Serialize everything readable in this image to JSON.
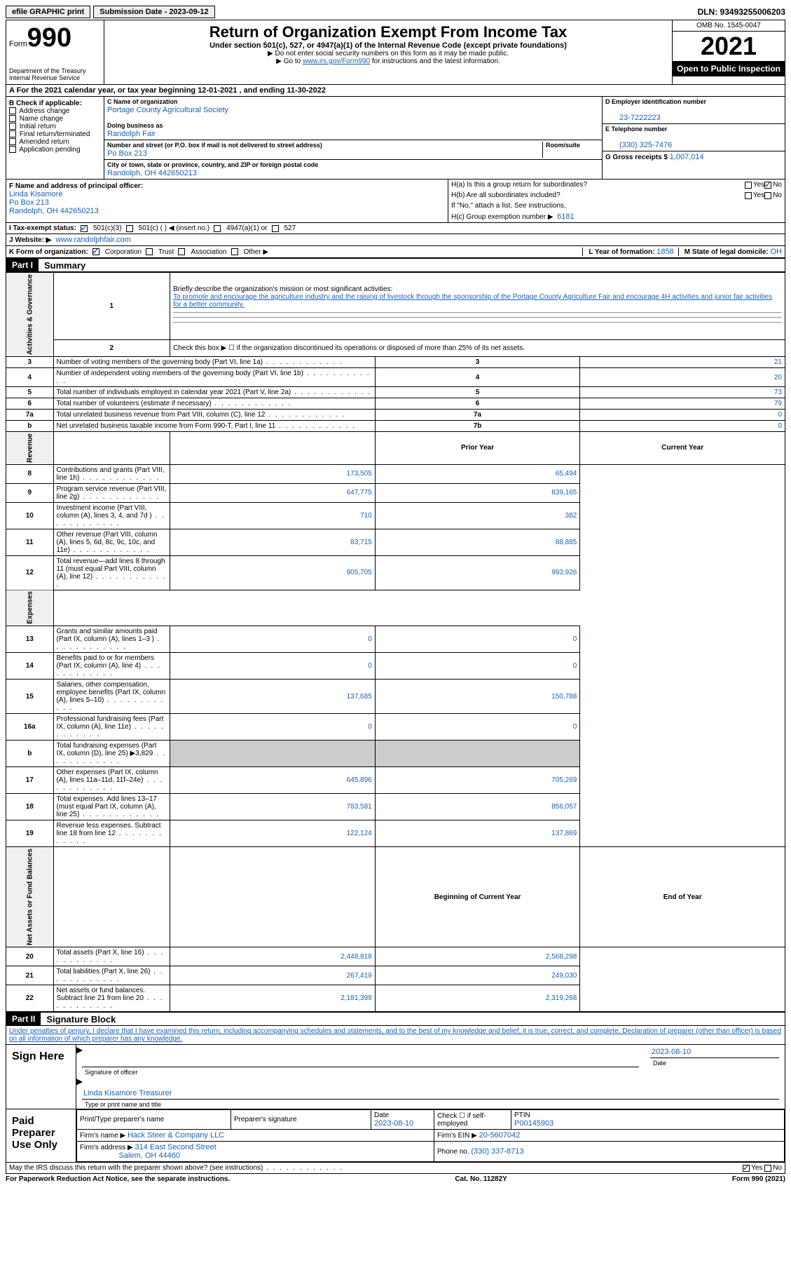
{
  "topbar": {
    "efile": "efile GRAPHIC print",
    "sub_label": "Submission Date - 2023-09-12",
    "dln": "DLN: 93493255006203"
  },
  "header": {
    "form_word": "Form",
    "form_num": "990",
    "title": "Return of Organization Exempt From Income Tax",
    "subtitle": "Under section 501(c), 527, or 4947(a)(1) of the Internal Revenue Code (except private foundations)",
    "instr1": "▶ Do not enter social security numbers on this form as it may be made public.",
    "instr2_pre": "▶ Go to ",
    "instr2_link": "www.irs.gov/Form990",
    "instr2_post": " for instructions and the latest information.",
    "dept": "Department of the Treasury",
    "irs": "Internal Revenue Service",
    "omb": "OMB No. 1545-0047",
    "year": "2021",
    "open": "Open to Public Inspection"
  },
  "rowA": {
    "text": "A For the 2021 calendar year, or tax year beginning 12-01-2021    , and ending 11-30-2022"
  },
  "boxB": {
    "label": "B Check if applicable:",
    "items": [
      "Address change",
      "Name change",
      "Initial return",
      "Final return/terminated",
      "Amended return",
      "Application pending"
    ]
  },
  "boxC": {
    "name_label": "C Name of organization",
    "name": "Portage County Agricultural Society",
    "dba_label": "Doing business as",
    "dba": "Randolph Fair",
    "street_label": "Number and street (or P.O. box if mail is not delivered to street address)",
    "room_label": "Room/suite",
    "street": "Po Box 213",
    "city_label": "City or town, state or province, country, and ZIP or foreign postal code",
    "city": "Randolph, OH  442650213"
  },
  "boxD": {
    "label": "D Employer identification number",
    "val": "23-7222223"
  },
  "boxE": {
    "label": "E Telephone number",
    "val": "(330) 325-7476"
  },
  "boxG": {
    "label": "G Gross receipts $",
    "val": "1,007,014"
  },
  "boxF": {
    "label": "F  Name and address of principal officer:",
    "name": "Linda Kisamore",
    "addr1": "Po Box 213",
    "addr2": "Randolph, OH  442650213"
  },
  "boxH": {
    "a": "H(a)  Is this a group return for subordinates?",
    "a_no": "No",
    "b": "H(b)  Are all subordinates included?",
    "b_note": "If \"No,\" attach a list. See instructions.",
    "c": "H(c)  Group exemption number ▶",
    "c_val": "6181"
  },
  "rowI": {
    "label": "I   Tax-exempt status:",
    "o1": "501(c)(3)",
    "o2": "501(c) (  ) ◀ (insert no.)",
    "o3": "4947(a)(1) or",
    "o4": "527"
  },
  "rowJ": {
    "label": "J   Website: ▶",
    "val": "www.randolphfair.com"
  },
  "rowK": {
    "label": "K Form of organization:",
    "o1": "Corporation",
    "o2": "Trust",
    "o3": "Association",
    "o4": "Other ▶",
    "L": "L Year of formation:",
    "L_val": "1858",
    "M": "M State of legal domicile:",
    "M_val": "OH"
  },
  "part1": {
    "num": "Part I",
    "title": "Summary"
  },
  "summary": {
    "q1": "Briefly describe the organization's mission or most significant activities:",
    "mission": "To promote and encourage the agriculture industry and the raising of livestock through the sponsorship of the Portage County Agriculture Fair and encourage 4H activities and junior fair activities for a better community.",
    "q2": "Check this box ▶ ☐ if the organization discontinued its operations or disposed of more than 25% of its net assets.",
    "rows_gov": [
      {
        "n": "3",
        "t": "Number of voting members of the governing body (Part VI, line 1a)",
        "box": "3",
        "v": "21"
      },
      {
        "n": "4",
        "t": "Number of independent voting members of the governing body (Part VI, line 1b)",
        "box": "4",
        "v": "20"
      },
      {
        "n": "5",
        "t": "Total number of individuals employed in calendar year 2021 (Part V, line 2a)",
        "box": "5",
        "v": "73"
      },
      {
        "n": "6",
        "t": "Total number of volunteers (estimate if necessary)",
        "box": "6",
        "v": "79"
      },
      {
        "n": "7a",
        "t": "Total unrelated business revenue from Part VIII, column (C), line 12",
        "box": "7a",
        "v": "0"
      },
      {
        "n": "b",
        "t": "Net unrelated business taxable income from Form 990-T, Part I, line 11",
        "box": "7b",
        "v": "0"
      }
    ],
    "col_prior": "Prior Year",
    "col_curr": "Current Year",
    "rev": [
      {
        "n": "8",
        "t": "Contributions and grants (Part VIII, line 1h)",
        "p": "173,505",
        "c": "65,494"
      },
      {
        "n": "9",
        "t": "Program service revenue (Part VIII, line 2g)",
        "p": "647,775",
        "c": "839,165"
      },
      {
        "n": "10",
        "t": "Investment income (Part VIII, column (A), lines 3, 4, and 7d )",
        "p": "710",
        "c": "382"
      },
      {
        "n": "11",
        "t": "Other revenue (Part VIII, column (A), lines 5, 6d, 8c, 9c, 10c, and 11e)",
        "p": "83,715",
        "c": "88,885"
      },
      {
        "n": "12",
        "t": "Total revenue—add lines 8 through 11 (must equal Part VIII, column (A), line 12)",
        "p": "905,705",
        "c": "993,926"
      }
    ],
    "exp": [
      {
        "n": "13",
        "t": "Grants and similar amounts paid (Part IX, column (A), lines 1–3 )",
        "p": "0",
        "c": "0"
      },
      {
        "n": "14",
        "t": "Benefits paid to or for members (Part IX, column (A), line 4)",
        "p": "0",
        "c": "0"
      },
      {
        "n": "15",
        "t": "Salaries, other compensation, employee benefits (Part IX, column (A), lines 5–10)",
        "p": "137,685",
        "c": "150,788"
      },
      {
        "n": "16a",
        "t": "Professional fundraising fees (Part IX, column (A), line 11e)",
        "p": "0",
        "c": "0"
      },
      {
        "n": "b",
        "t": "Total fundraising expenses (Part IX, column (D), line 25) ▶3,829",
        "p": "",
        "c": "",
        "grey": true
      },
      {
        "n": "17",
        "t": "Other expenses (Part IX, column (A), lines 11a–11d, 11f–24e)",
        "p": "645,896",
        "c": "705,269"
      },
      {
        "n": "18",
        "t": "Total expenses. Add lines 13–17 (must equal Part IX, column (A), line 25)",
        "p": "783,581",
        "c": "856,057"
      },
      {
        "n": "19",
        "t": "Revenue less expenses. Subtract line 18 from line 12",
        "p": "122,124",
        "c": "137,869"
      }
    ],
    "col_beg": "Beginning of Current Year",
    "col_end": "End of Year",
    "net": [
      {
        "n": "20",
        "t": "Total assets (Part X, line 16)",
        "p": "2,448,818",
        "c": "2,568,298"
      },
      {
        "n": "21",
        "t": "Total liabilities (Part X, line 26)",
        "p": "267,419",
        "c": "249,030"
      },
      {
        "n": "22",
        "t": "Net assets or fund balances. Subtract line 21 from line 20",
        "p": "2,181,399",
        "c": "2,319,268"
      }
    ],
    "side1": "Activities & Governance",
    "side2": "Revenue",
    "side3": "Expenses",
    "side4": "Net Assets or Fund Balances"
  },
  "part2": {
    "num": "Part II",
    "title": "Signature Block"
  },
  "perjury": "Under penalties of perjury, I declare that I have examined this return, including accompanying schedules and statements, and to the best of my knowledge and belief, it is true, correct, and complete. Declaration of preparer (other than officer) is based on all information of which preparer has any knowledge.",
  "sign": {
    "label": "Sign Here",
    "date": "2023-08-10",
    "sig_label": "Signature of officer",
    "date_label": "Date",
    "name": "Linda Kisamore  Treasurer",
    "name_label": "Type or print name and title"
  },
  "prep": {
    "label": "Paid Preparer Use Only",
    "h1": "Print/Type preparer's name",
    "h2": "Preparer's signature",
    "h3": "Date",
    "h3v": "2023-08-10",
    "h4": "Check ☐ if self-employed",
    "h5": "PTIN",
    "h5v": "P00145903",
    "firm_l": "Firm's name    ▶",
    "firm": "Hack Steer & Company LLC",
    "ein_l": "Firm's EIN ▶",
    "ein": "20-5607042",
    "addr_l": "Firm's address ▶",
    "addr1": "314 East Second Street",
    "addr2": "Salem, OH  44460",
    "phone_l": "Phone no.",
    "phone": "(330) 337-8713"
  },
  "discuss": {
    "text": "May the IRS discuss this return with the preparer shown above? (see instructions)",
    "yes": "Yes",
    "no": "No"
  },
  "footer": {
    "left": "For Paperwork Reduction Act Notice, see the separate instructions.",
    "mid": "Cat. No. 11282Y",
    "right": "Form 990 (2021)"
  }
}
